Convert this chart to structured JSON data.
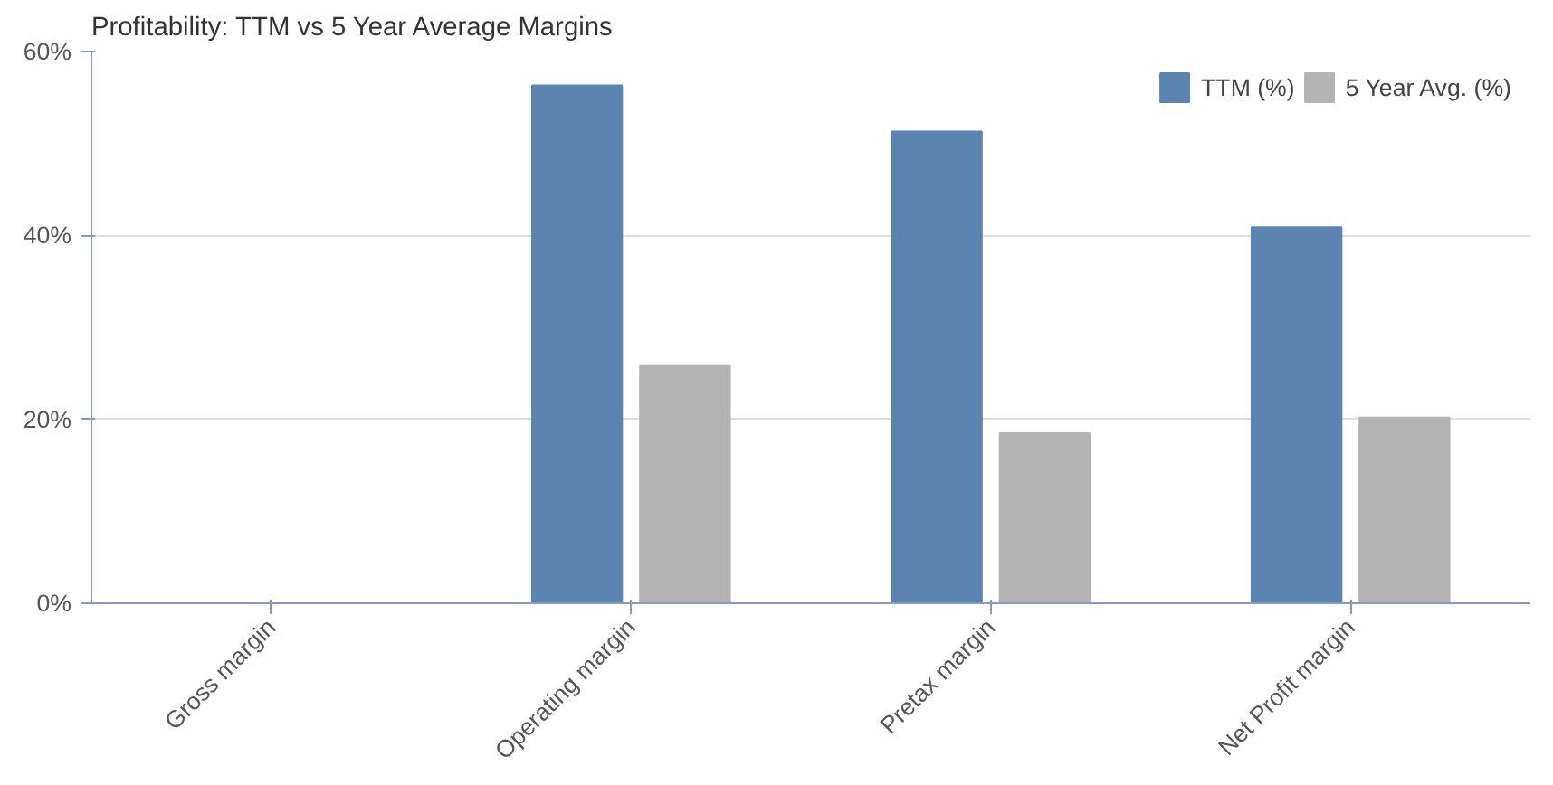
{
  "chart_data": {
    "type": "bar",
    "title": "Profitability: TTM vs 5 Year Average Margins",
    "categories": [
      "Gross margin",
      "Operating margin",
      "Pretax margin",
      "Net Profit margin"
    ],
    "series": [
      {
        "name": "TTM (%)",
        "color": "#5b84b1",
        "values": [
          null,
          56.3,
          51.3,
          40.9
        ]
      },
      {
        "name": "5 Year Avg. (%)",
        "color": "#b3b3b3",
        "values": [
          null,
          25.8,
          18.5,
          20.2
        ]
      }
    ],
    "ylim": [
      0,
      60
    ],
    "yticks": [
      {
        "value": 0,
        "label": "0%"
      },
      {
        "value": 20,
        "label": "20%"
      },
      {
        "value": 40,
        "label": "40%"
      },
      {
        "value": 60,
        "label": "60%"
      }
    ],
    "grid": "y",
    "legend": "top right"
  }
}
